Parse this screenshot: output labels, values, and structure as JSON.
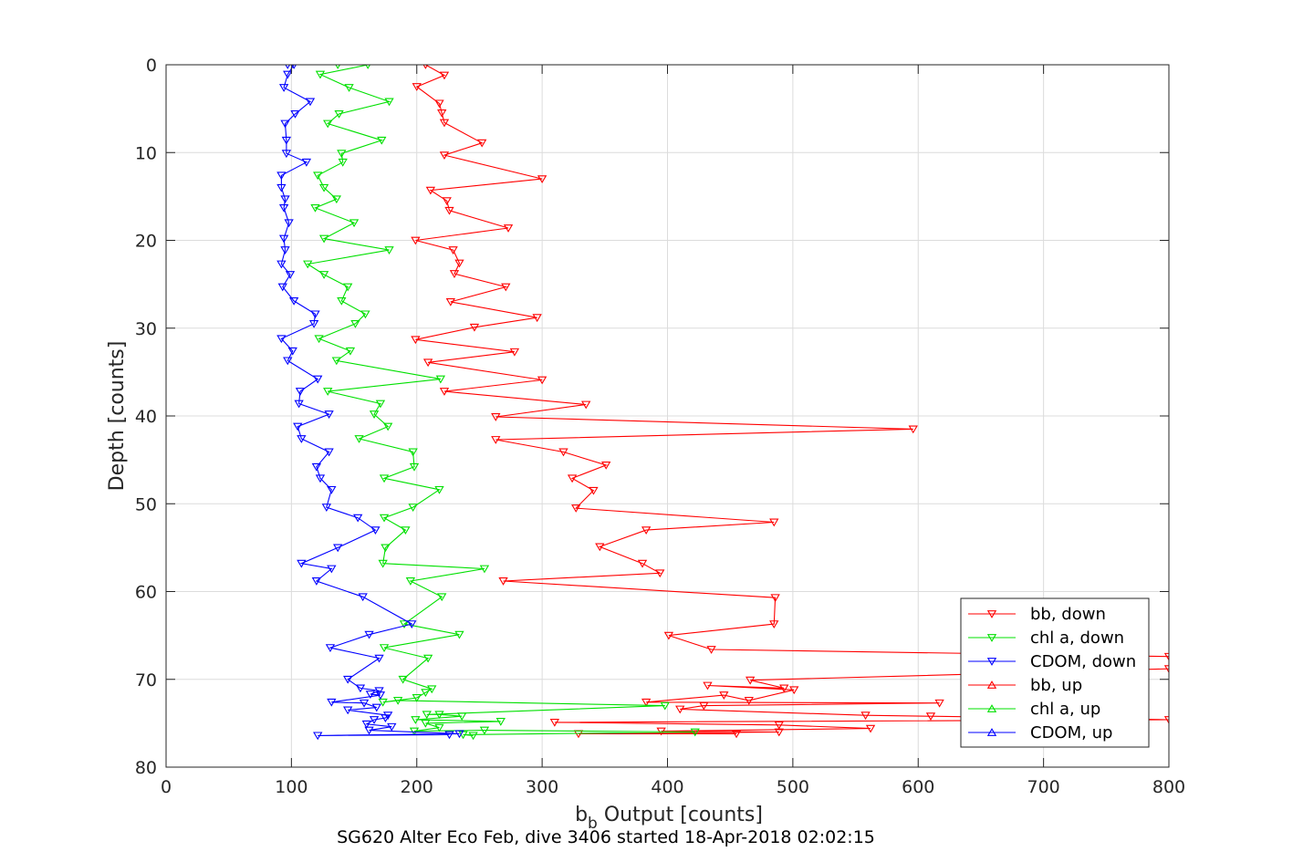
{
  "chart_data": {
    "type": "line",
    "xlabel_base": "b",
    "xlabel_sub": "b",
    "xlabel_rest": " Output [counts]",
    "ylabel": "Depth [counts]",
    "footer": "SG620 Alter Eco Feb, dive 3406 started 18-Apr-2018 02:02:15",
    "xlim": [
      0,
      800
    ],
    "ylim": [
      0,
      80
    ],
    "y_reversed": true,
    "grid": true,
    "legend_position": "bottom-right",
    "xticks": [
      "0",
      "100",
      "200",
      "300",
      "400",
      "500",
      "600",
      "700",
      "800"
    ],
    "yticks": [
      "0",
      "10",
      "20",
      "30",
      "40",
      "50",
      "60",
      "70",
      "80"
    ],
    "series": [
      {
        "name": "bb, down",
        "color": "#ff0000",
        "marker": "triangle-down",
        "points": [
          [
            207,
            0
          ],
          [
            222,
            1.2
          ],
          [
            200,
            2.5
          ],
          [
            218,
            4.4
          ],
          [
            220,
            5.5
          ],
          [
            222,
            6.6
          ],
          [
            252,
            8.9
          ],
          [
            222,
            10.3
          ],
          [
            300,
            13
          ],
          [
            211,
            14.3
          ],
          [
            224,
            15.5
          ],
          [
            226,
            16.6
          ],
          [
            273,
            18.6
          ],
          [
            199,
            20
          ],
          [
            229,
            21.1
          ],
          [
            234,
            22.6
          ],
          [
            230,
            23.8
          ],
          [
            271,
            25.3
          ],
          [
            227,
            27
          ],
          [
            296,
            28.8
          ],
          [
            246,
            29.9
          ],
          [
            199,
            31.3
          ],
          [
            278,
            32.7
          ],
          [
            209,
            33.9
          ],
          [
            300,
            35.9
          ],
          [
            222,
            37.2
          ],
          [
            335,
            38.7
          ],
          [
            263,
            40.1
          ],
          [
            596,
            41.5
          ],
          [
            263,
            42.7
          ],
          [
            317,
            44.1
          ],
          [
            351,
            45.6
          ],
          [
            324,
            47.1
          ],
          [
            341,
            48.5
          ],
          [
            327,
            50.5
          ],
          [
            485,
            52.1
          ],
          [
            383,
            53
          ],
          [
            346,
            54.9
          ],
          [
            380,
            56.8
          ],
          [
            394,
            57.9
          ],
          [
            269,
            58.8
          ],
          [
            486,
            60.7
          ],
          [
            485,
            63.7
          ],
          [
            401,
            65
          ],
          [
            435,
            66.6
          ],
          [
            800,
            67.4
          ],
          [
            800,
            68.8
          ],
          [
            466,
            70.1
          ],
          [
            493,
            71
          ],
          [
            432,
            70.7
          ],
          [
            501,
            71.2
          ],
          [
            465,
            72.4
          ],
          [
            445,
            71.8
          ],
          [
            383,
            72.6
          ],
          [
            617,
            72.7
          ],
          [
            429,
            73
          ],
          [
            410,
            73.4
          ],
          [
            558,
            74.1
          ],
          [
            610,
            74.2
          ],
          [
            800,
            74.6
          ],
          [
            310,
            74.9
          ],
          [
            489,
            75.2
          ],
          [
            562,
            75.6
          ],
          [
            395,
            75.9
          ],
          [
            489,
            76
          ],
          [
            329,
            76.2
          ],
          [
            455,
            76.2
          ]
        ]
      },
      {
        "name": "chl a, down",
        "color": "#00e000",
        "marker": "triangle-down",
        "points": [
          [
            137,
            0
          ],
          [
            161,
            0
          ],
          [
            123,
            1.1
          ],
          [
            146,
            2.6
          ],
          [
            178,
            4.2
          ],
          [
            138,
            5.6
          ],
          [
            129,
            6.7
          ],
          [
            172,
            8.6
          ],
          [
            140,
            10.1
          ],
          [
            141,
            11.1
          ],
          [
            121,
            12.6
          ],
          [
            126,
            14
          ],
          [
            136,
            15.3
          ],
          [
            119,
            16.3
          ],
          [
            150,
            18
          ],
          [
            126,
            19.8
          ],
          [
            178,
            21.1
          ],
          [
            113,
            22.7
          ],
          [
            126,
            23.9
          ],
          [
            145,
            25.3
          ],
          [
            140,
            26.9
          ],
          [
            159,
            28.4
          ],
          [
            151,
            29.5
          ],
          [
            122,
            31.2
          ],
          [
            147,
            32.6
          ],
          [
            136,
            33.7
          ],
          [
            219,
            35.8
          ],
          [
            129,
            37.2
          ],
          [
            171,
            38.6
          ],
          [
            166,
            39.8
          ],
          [
            177,
            41.2
          ],
          [
            154,
            42.6
          ],
          [
            197,
            44.1
          ],
          [
            198,
            45.8
          ],
          [
            174,
            47.1
          ],
          [
            218,
            48.4
          ],
          [
            197,
            50.4
          ],
          [
            174,
            51.6
          ],
          [
            191,
            53
          ],
          [
            175,
            55
          ],
          [
            173,
            56.8
          ],
          [
            254,
            57.4
          ],
          [
            195,
            58.8
          ],
          [
            220,
            60.6
          ],
          [
            190,
            63.7
          ],
          [
            234,
            64.9
          ],
          [
            174,
            66.4
          ],
          [
            209,
            67.6
          ],
          [
            189,
            70
          ],
          [
            212,
            71.1
          ],
          [
            207,
            71.5
          ],
          [
            200,
            72.1
          ],
          [
            173,
            72.6
          ],
          [
            185,
            72.4
          ],
          [
            398,
            73
          ],
          [
            208,
            74
          ],
          [
            218,
            74
          ],
          [
            236,
            74.2
          ],
          [
            199,
            74.6
          ],
          [
            267,
            74.8
          ],
          [
            207,
            75
          ],
          [
            218,
            75.5
          ],
          [
            198,
            75.9
          ],
          [
            254,
            75.8
          ],
          [
            422,
            76
          ],
          [
            237,
            76.3
          ],
          [
            245,
            76.4
          ]
        ]
      },
      {
        "name": "CDOM, down",
        "color": "#0000ff",
        "marker": "triangle-down",
        "points": [
          [
            97,
            0
          ],
          [
            102,
            0
          ],
          [
            97,
            1.1
          ],
          [
            94,
            2.6
          ],
          [
            115,
            4.2
          ],
          [
            103,
            5.6
          ],
          [
            95,
            6.7
          ],
          [
            96,
            8.6
          ],
          [
            96,
            10.1
          ],
          [
            112,
            11.1
          ],
          [
            92,
            12.6
          ],
          [
            92,
            14
          ],
          [
            95,
            15.3
          ],
          [
            94,
            16.3
          ],
          [
            98,
            18
          ],
          [
            94,
            19.8
          ],
          [
            95,
            21.1
          ],
          [
            92,
            22.7
          ],
          [
            99,
            23.9
          ],
          [
            93,
            25.3
          ],
          [
            102,
            26.9
          ],
          [
            119,
            28.4
          ],
          [
            118,
            29.5
          ],
          [
            92,
            31.2
          ],
          [
            101,
            32.6
          ],
          [
            97,
            33.7
          ],
          [
            121,
            35.8
          ],
          [
            107,
            37.2
          ],
          [
            106,
            38.6
          ],
          [
            130,
            39.8
          ],
          [
            105,
            41.2
          ],
          [
            108,
            42.6
          ],
          [
            130,
            44.1
          ],
          [
            120,
            45.8
          ],
          [
            123,
            47.1
          ],
          [
            132,
            48.4
          ],
          [
            128,
            50.4
          ],
          [
            153,
            51.6
          ],
          [
            167,
            53
          ],
          [
            137,
            55
          ],
          [
            108,
            56.8
          ],
          [
            132,
            57.4
          ],
          [
            120,
            58.8
          ],
          [
            157,
            60.6
          ],
          [
            196,
            63.7
          ],
          [
            162,
            64.9
          ],
          [
            131,
            66.4
          ],
          [
            170,
            67.6
          ],
          [
            145,
            70
          ],
          [
            155,
            71
          ],
          [
            170,
            71.3
          ],
          [
            163,
            71.7
          ],
          [
            171,
            71.8
          ],
          [
            132,
            72.6
          ],
          [
            158,
            72.7
          ],
          [
            168,
            73.2
          ],
          [
            145,
            73.5
          ],
          [
            177,
            74.1
          ],
          [
            175,
            74.4
          ],
          [
            166,
            74.6
          ],
          [
            160,
            75.1
          ],
          [
            180,
            75.4
          ],
          [
            162,
            75.8
          ],
          [
            234,
            76.2
          ],
          [
            121,
            76.4
          ],
          [
            226,
            76.3
          ]
        ]
      },
      {
        "name": "bb, up",
        "color": "#ff0000",
        "marker": "triangle-up",
        "points": []
      },
      {
        "name": "chl a, up",
        "color": "#00e000",
        "marker": "triangle-up",
        "points": []
      },
      {
        "name": "CDOM, up",
        "color": "#0000ff",
        "marker": "triangle-up",
        "points": []
      }
    ]
  }
}
